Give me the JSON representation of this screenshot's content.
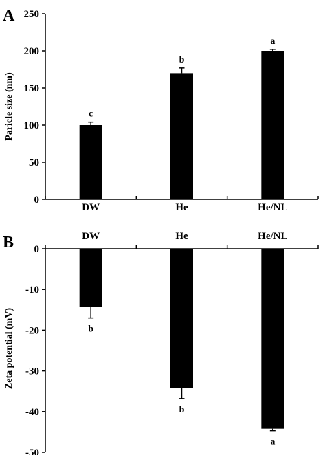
{
  "chart_data": [
    {
      "type": "bar",
      "panel": "A",
      "ylabel": "Paricle size (nm)",
      "categories": [
        "DW",
        "He",
        "He/NL"
      ],
      "values": [
        100,
        170,
        200
      ],
      "errors": [
        4,
        7,
        2
      ],
      "significance": [
        "c",
        "b",
        "a"
      ],
      "ylim": [
        0,
        250
      ],
      "yticks": [
        "0",
        "50",
        "100",
        "150",
        "200",
        "250"
      ],
      "grid": false
    },
    {
      "type": "bar",
      "panel": "B",
      "ylabel": "Zeta potential (mV)",
      "categories": [
        "DW",
        "He",
        "He/NL"
      ],
      "values": [
        -14.2,
        -34.2,
        -44.2
      ],
      "errors": [
        2.8,
        2.6,
        0.5
      ],
      "significance": [
        "b",
        "b",
        "a"
      ],
      "ylim": [
        -50,
        0
      ],
      "yticks": [
        "0",
        "-10",
        "-20",
        "-30",
        "-40",
        "-50"
      ],
      "grid": false
    }
  ]
}
